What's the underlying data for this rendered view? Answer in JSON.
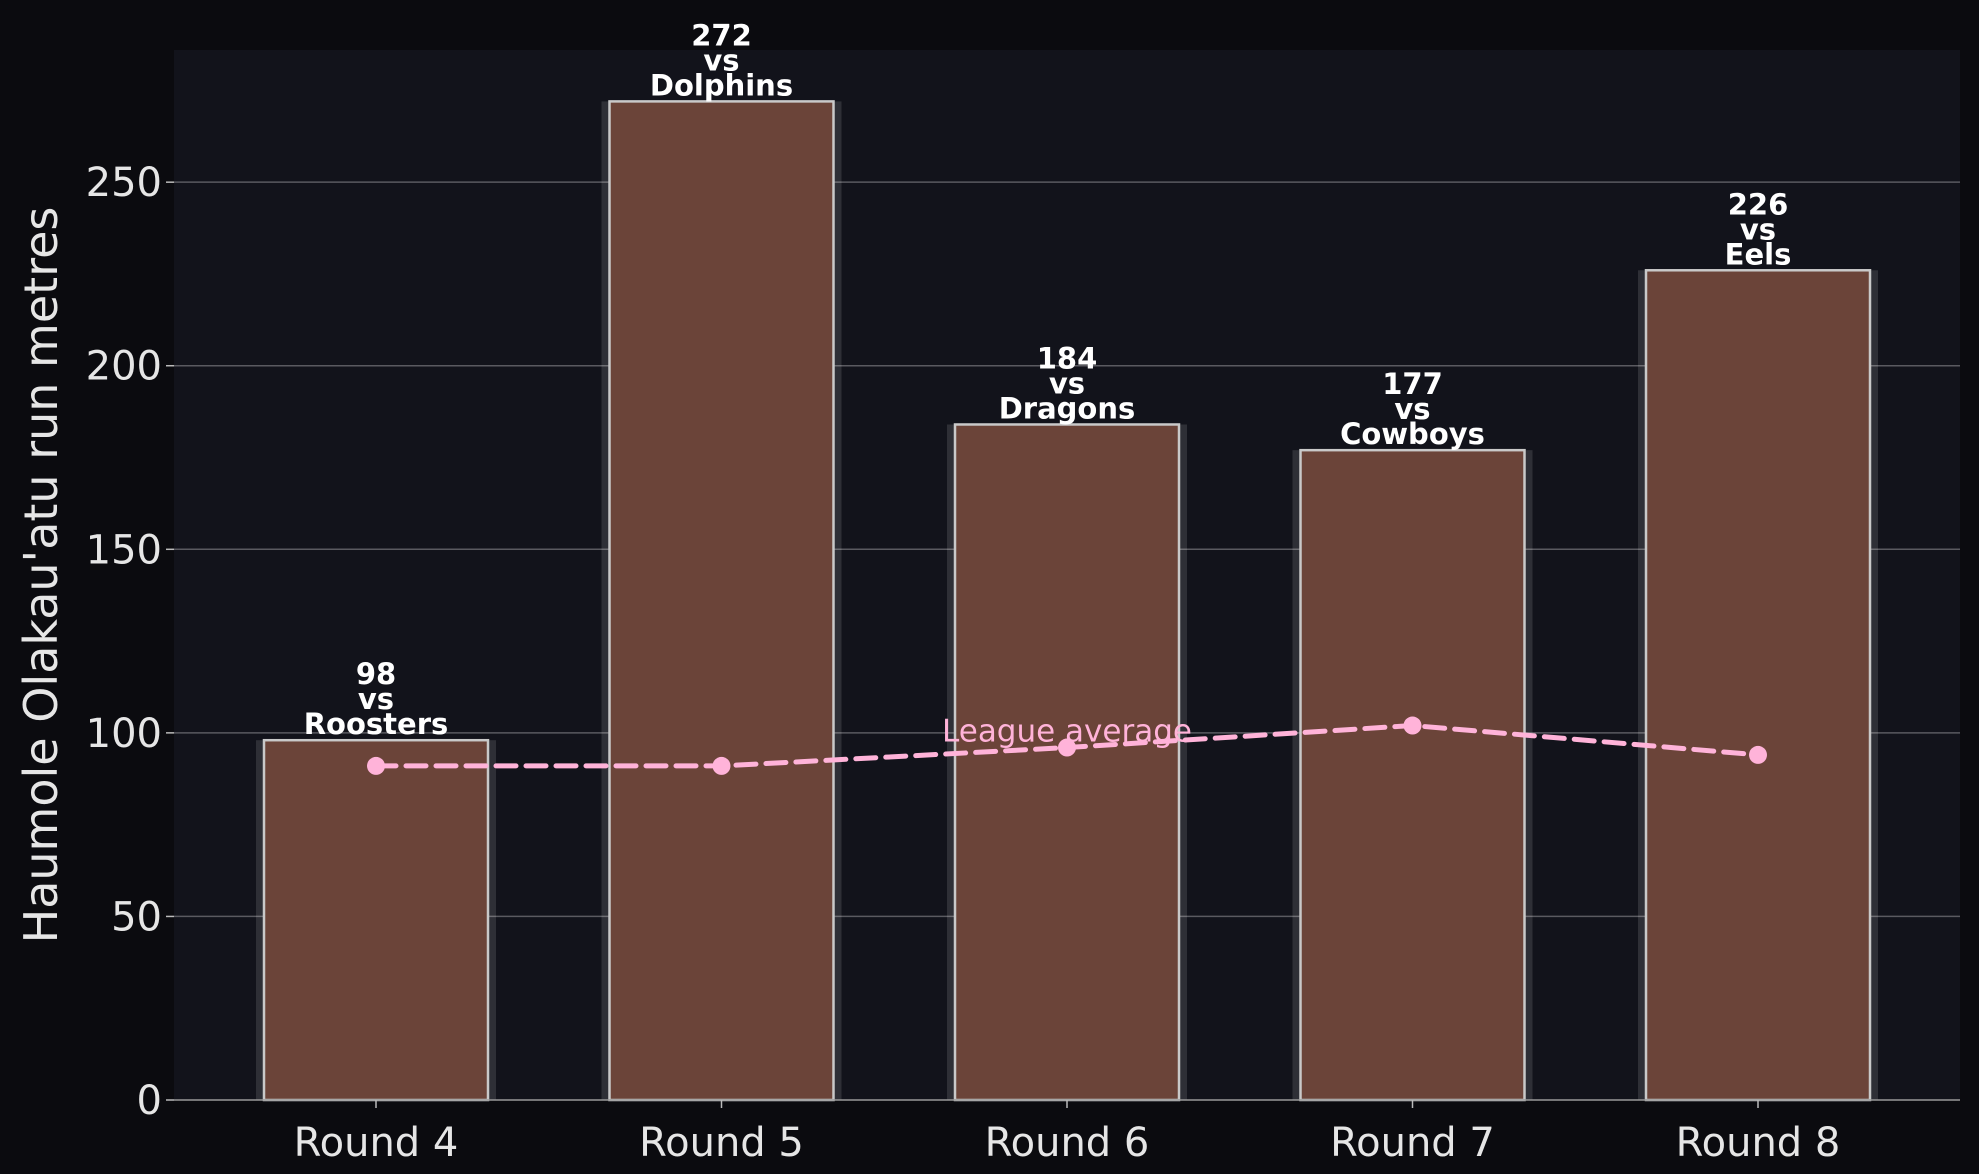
{
  "chart_data": {
    "type": "bar",
    "categories": [
      "Round 4",
      "Round 5",
      "Round 6",
      "Round 7",
      "Round 8"
    ],
    "series": [
      {
        "name": "",
        "values": [
          98,
          272,
          184,
          177,
          226
        ],
        "opponents": [
          "Roosters",
          "Dolphins",
          "Dragons",
          "Cowboys",
          "Eels"
        ],
        "color": "#6b4439"
      }
    ],
    "overlay": {
      "type": "line",
      "name": "League average",
      "values": [
        91,
        91,
        96,
        102,
        94
      ],
      "color": "#ffb3d9",
      "style": "dashed"
    },
    "vs_text": "vs",
    "title": "",
    "xlabel": "",
    "ylabel": "Haumole Olakau'atu run metres",
    "ylim": [
      0,
      286
    ],
    "yticks": [
      0,
      50,
      100,
      150,
      200,
      250
    ],
    "grid": "y",
    "colors": {
      "background": "#0b0b0f",
      "plot_background": "#12131b",
      "bar_edge": "#c9c9c9",
      "grid": "#5a5a60",
      "text": "#e6e6e6"
    }
  }
}
